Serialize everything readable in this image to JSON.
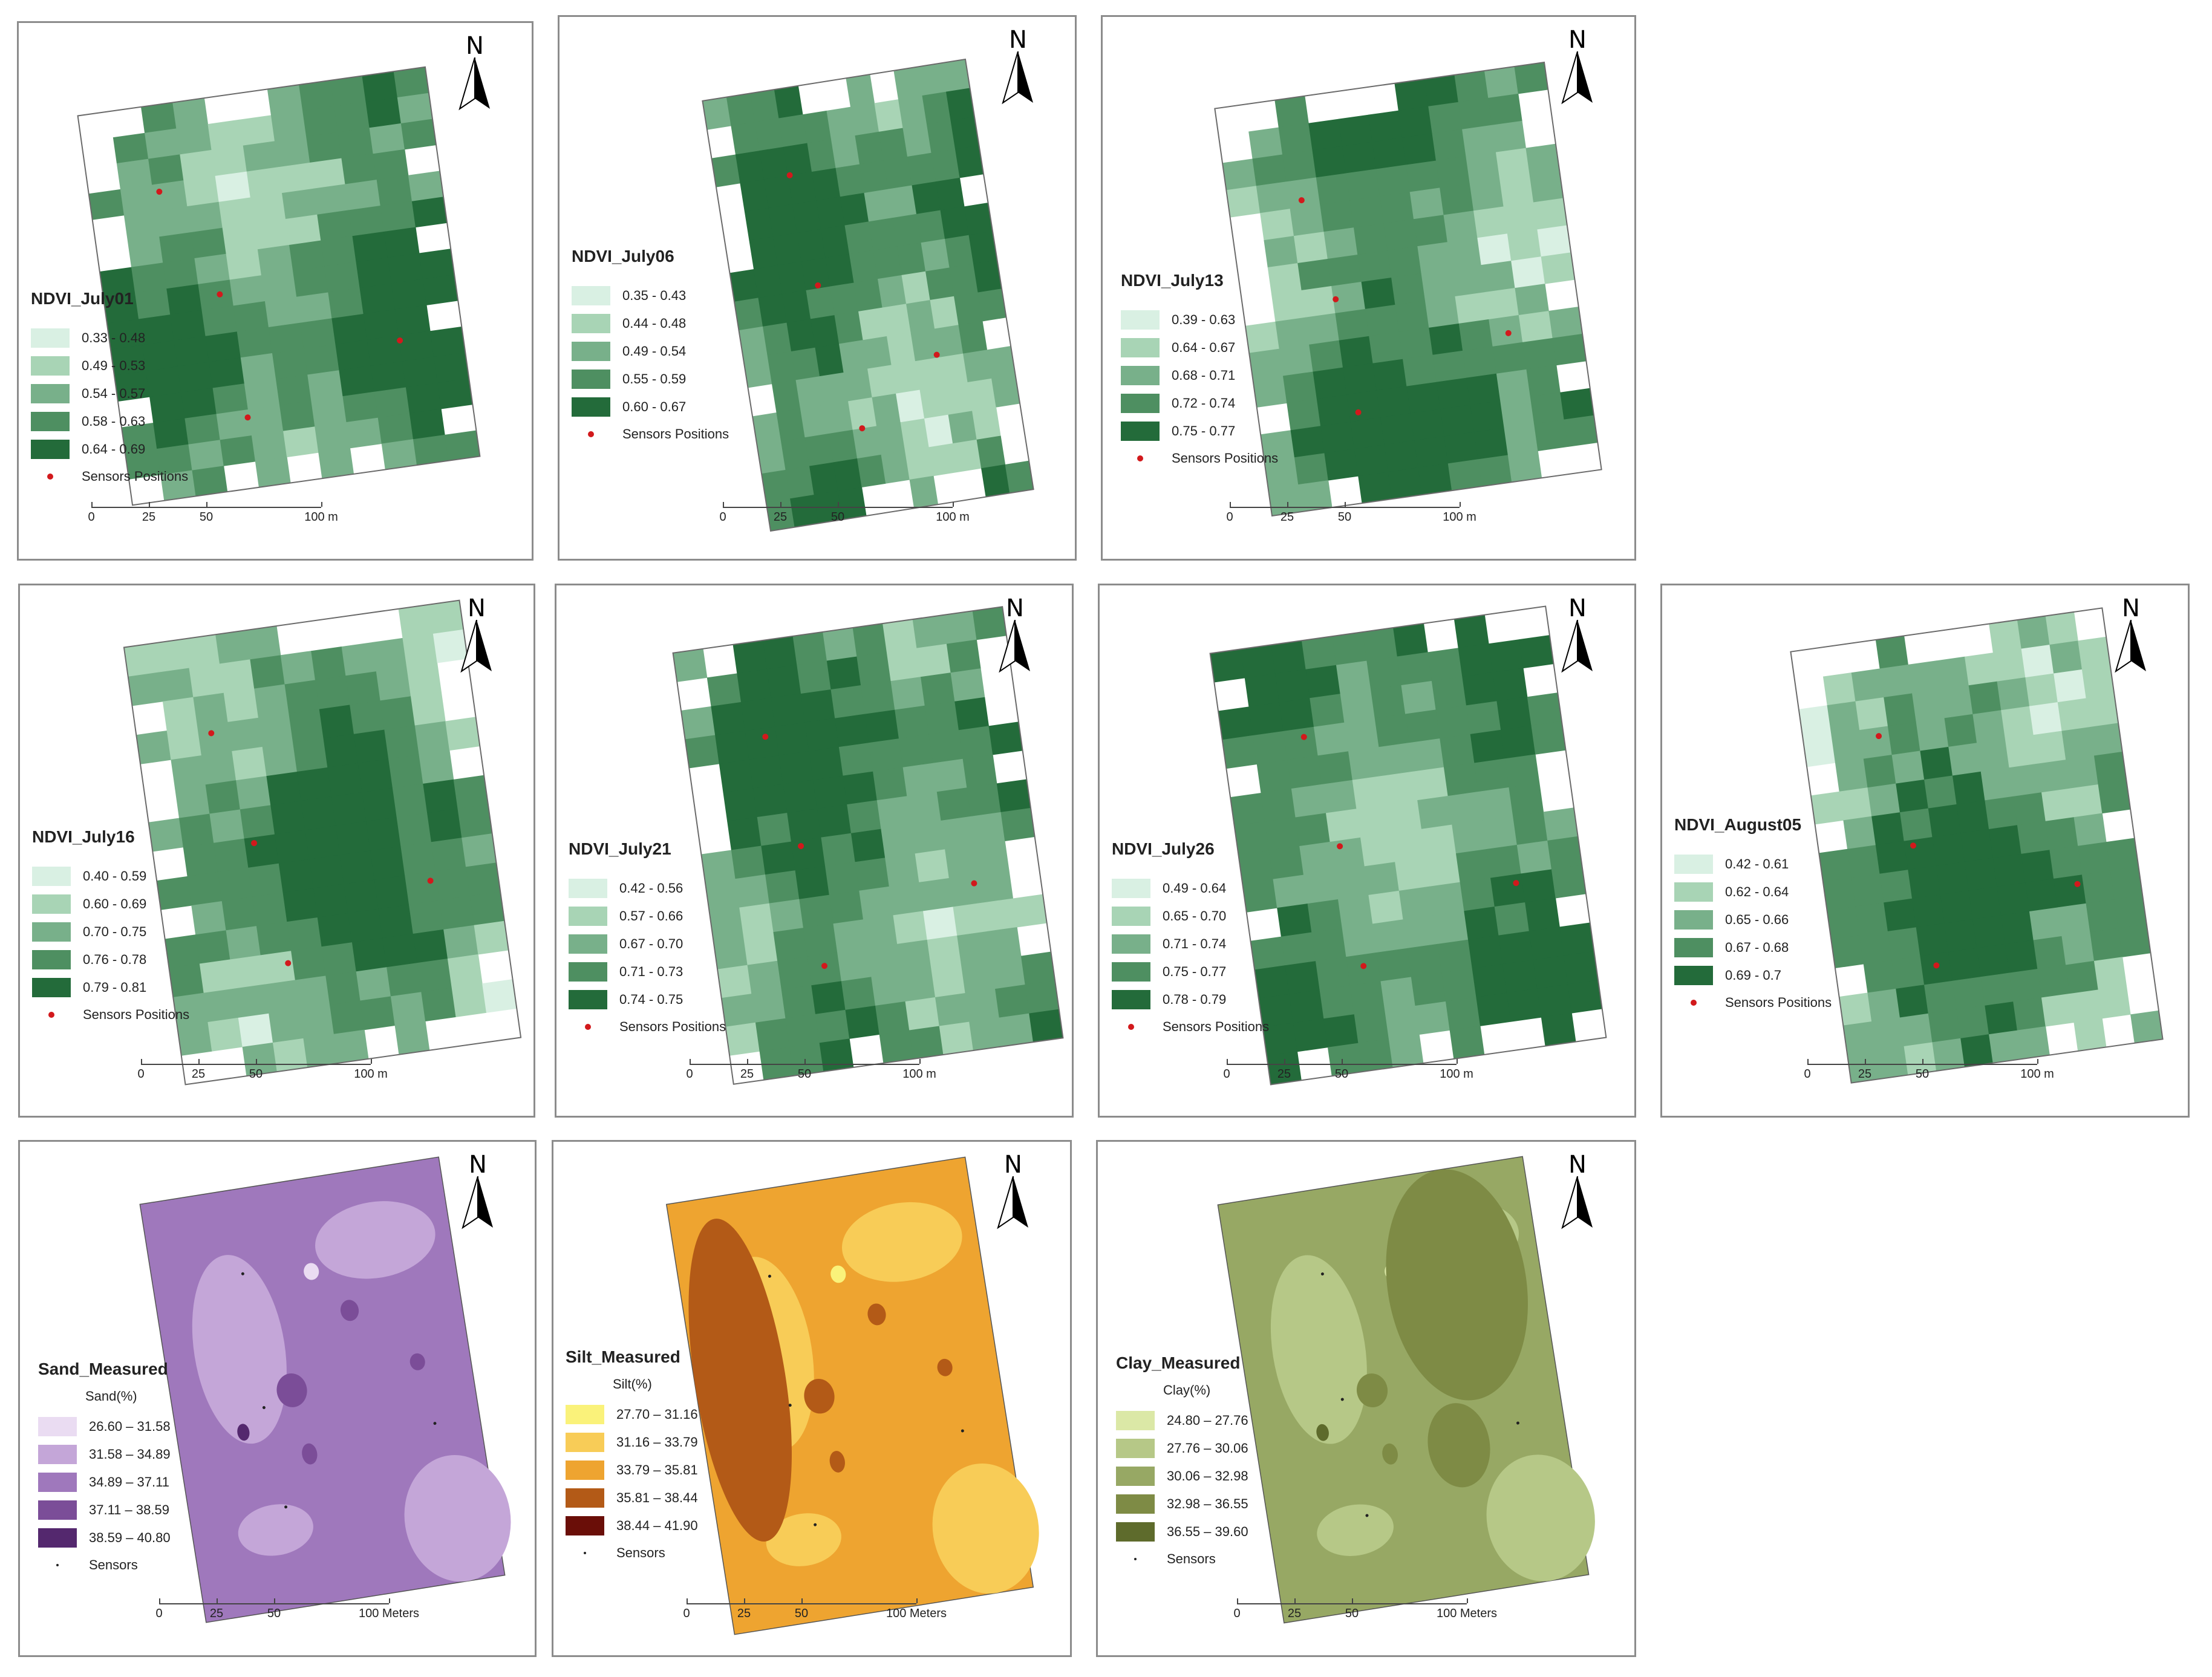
{
  "sensor_label": "Sensors Positions",
  "north_label": "N",
  "ndvi_scale": [
    "0",
    "25",
    "50",
    "100 m"
  ],
  "meters_scale": [
    "0",
    "25",
    "50",
    "100 Meters"
  ],
  "colors": {
    "green": [
      "#d9f0e3",
      "#a8d4b5",
      "#78b08a",
      "#4e8f61",
      "#236b3a"
    ],
    "sand": [
      "#eadcf2",
      "#c4a6d8",
      "#9f78bc",
      "#7b4d98",
      "#54286e"
    ],
    "silt": [
      "#faf27a",
      "#f8cc57",
      "#eea430",
      "#b35a17",
      "#6a0e08"
    ],
    "clay": [
      "#dbe8a6",
      "#b6c887",
      "#97a864",
      "#7e8b45",
      "#5e6b2c"
    ],
    "sensor_red": "#d2191c"
  },
  "panels": [
    {
      "title": "NDVI_July01",
      "classes": [
        "0.33 - 0.48",
        "0.49 - 0.53",
        "0.54 - 0.57",
        "0.58 - 0.63",
        "0.64 - 0.69"
      ]
    },
    {
      "title": "NDVI_July06",
      "classes": [
        "0.35 - 0.43",
        "0.44 - 0.48",
        "0.49 - 0.54",
        "0.55 - 0.59",
        "0.60 - 0.67"
      ]
    },
    {
      "title": "NDVI_July13",
      "classes": [
        "0.39 - 0.63",
        "0.64 - 0.67",
        "0.68 - 0.71",
        "0.72 - 0.74",
        "0.75 - 0.77"
      ]
    },
    {
      "title": "NDVI_July16",
      "classes": [
        "0.40 - 0.59",
        "0.60 - 0.69",
        "0.70 - 0.75",
        "0.76 - 0.78",
        "0.79 - 0.81"
      ]
    },
    {
      "title": "NDVI_July21",
      "classes": [
        "0.42 - 0.56",
        "0.57 - 0.66",
        "0.67 - 0.70",
        "0.71 - 0.73",
        "0.74 - 0.75"
      ]
    },
    {
      "title": "NDVI_July26",
      "classes": [
        "0.49 - 0.64",
        "0.65 - 0.70",
        "0.71 - 0.74",
        "0.75 - 0.77",
        "0.78 - 0.79"
      ]
    },
    {
      "title": "NDVI_August05",
      "classes": [
        "0.42 - 0.61",
        "0.62 - 0.64",
        "0.65 - 0.66",
        "0.67 - 0.68",
        "0.69 - 0.7"
      ]
    },
    {
      "title": "Sand_Measured",
      "subtitle": "Sand(%)",
      "classes": [
        "26.60 – 31.58",
        "31.58 – 34.89",
        "34.89 – 37.11",
        "37.11 – 38.59",
        "38.59 – 40.80"
      ],
      "sensor_label": "Sensors"
    },
    {
      "title": "Silt_Measured",
      "subtitle": "Silt(%)",
      "classes": [
        "27.70 – 31.16",
        "31.16 – 33.79",
        "33.79 – 35.81",
        "35.81 – 38.44",
        "38.44 – 41.90"
      ],
      "sensor_label": "Sensors"
    },
    {
      "title": "Clay_Measured",
      "subtitle": "Clay(%)",
      "classes": [
        "24.80 – 27.76",
        "27.76 – 30.06",
        "30.06 – 32.98",
        "32.98 – 36.55",
        "36.55 – 39.60"
      ],
      "sensor_label": "Sensors"
    }
  ]
}
